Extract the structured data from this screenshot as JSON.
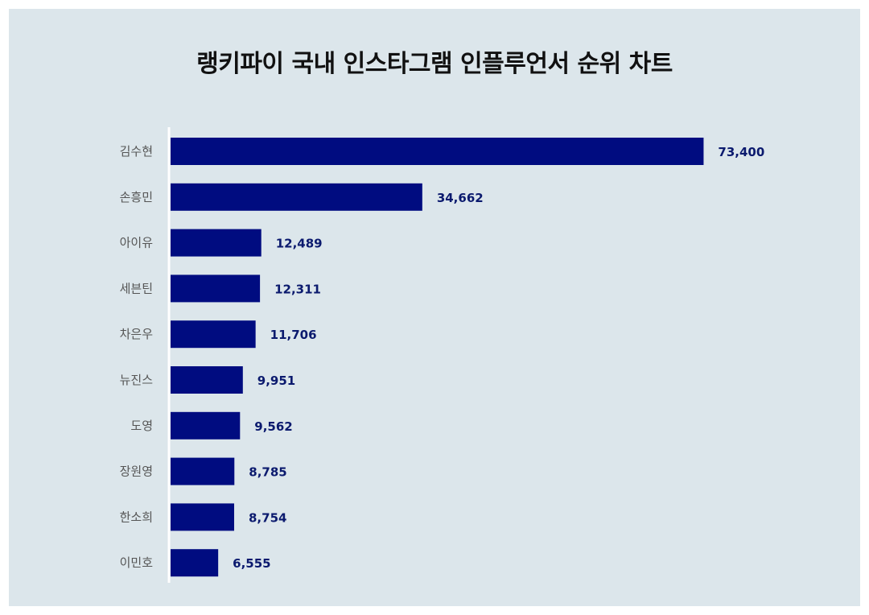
{
  "chart_data": {
    "type": "bar",
    "orientation": "horizontal",
    "title": "랭키파이 국내 인스타그램 인플루언서 순위 차트",
    "categories": [
      "김수현",
      "손흥민",
      "아이유",
      "세븐틴",
      "차은우",
      "뉴진스",
      "도영",
      "장원영",
      "한소희",
      "이민호"
    ],
    "values": [
      73400,
      34662,
      12489,
      12311,
      11706,
      9951,
      9562,
      8785,
      8754,
      6555
    ],
    "value_labels": [
      "73,400",
      "34,662",
      "12,489",
      "12,311",
      "11,706",
      "9,951",
      "9,562",
      "8,785",
      "8,754",
      "6,555"
    ],
    "xlim": [
      0,
      80000
    ],
    "grid": false,
    "legend": "none",
    "colors": {
      "bar": "#000c80",
      "value_label": "#0b1a6e",
      "background": "#dce6eb",
      "axis": "#ffffff"
    }
  }
}
